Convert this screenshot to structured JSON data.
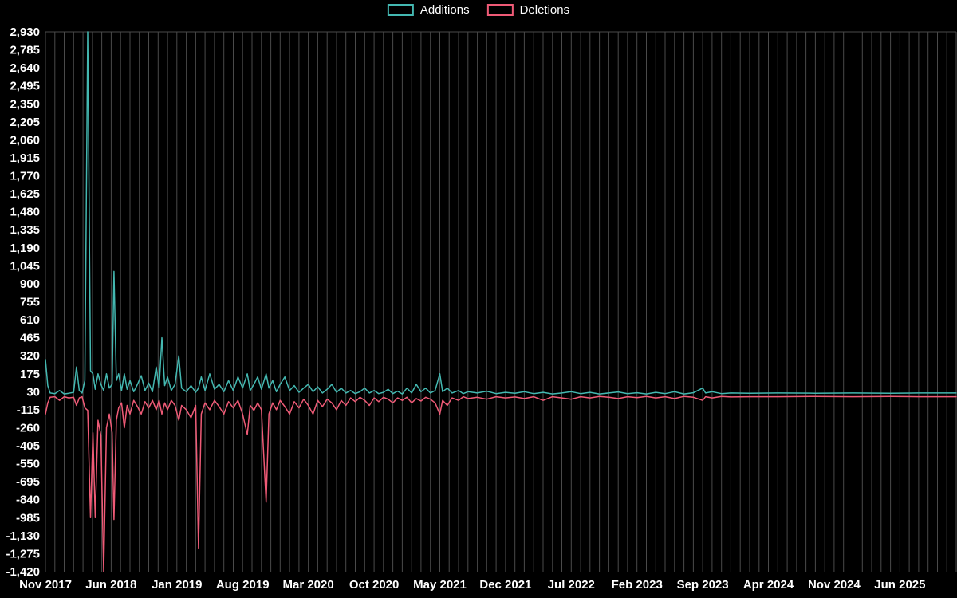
{
  "legend": {
    "additions": "Additions",
    "deletions": "Deletions"
  },
  "chart_data": {
    "type": "line",
    "title": "",
    "xlabel": "",
    "ylabel": "",
    "legend_position": "top-center",
    "x_unit": "months since Nov 2017",
    "xlim": [
      0,
      97
    ],
    "ylim": [
      -1420,
      2930
    ],
    "grid": {
      "x_interval": 1,
      "color": "#4a4a4a",
      "top_border": true
    },
    "colors": {
      "background": "#000000",
      "text": "#ffffff"
    },
    "xticks": [
      {
        "m": 0,
        "label": "Nov 2017"
      },
      {
        "m": 7,
        "label": "Jun 2018"
      },
      {
        "m": 14,
        "label": "Jan 2019"
      },
      {
        "m": 21,
        "label": "Aug 2019"
      },
      {
        "m": 28,
        "label": "Mar 2020"
      },
      {
        "m": 35,
        "label": "Oct 2020"
      },
      {
        "m": 42,
        "label": "May 2021"
      },
      {
        "m": 49,
        "label": "Dec 2021"
      },
      {
        "m": 56,
        "label": "Jul 2022"
      },
      {
        "m": 63,
        "label": "Feb 2023"
      },
      {
        "m": 70,
        "label": "Sep 2023"
      },
      {
        "m": 77,
        "label": "Apr 2024"
      },
      {
        "m": 84,
        "label": "Nov 2024"
      },
      {
        "m": 91,
        "label": "Jun 2025"
      }
    ],
    "yticks": [
      {
        "v": 2930,
        "label": "2,930"
      },
      {
        "v": 2785,
        "label": "2,785"
      },
      {
        "v": 2640,
        "label": "2,640"
      },
      {
        "v": 2495,
        "label": "2,495"
      },
      {
        "v": 2350,
        "label": "2,350"
      },
      {
        "v": 2205,
        "label": "2,205"
      },
      {
        "v": 2060,
        "label": "2,060"
      },
      {
        "v": 1915,
        "label": "1,915"
      },
      {
        "v": 1770,
        "label": "1,770"
      },
      {
        "v": 1625,
        "label": "1,625"
      },
      {
        "v": 1480,
        "label": "1,480"
      },
      {
        "v": 1335,
        "label": "1,335"
      },
      {
        "v": 1190,
        "label": "1,190"
      },
      {
        "v": 1045,
        "label": "1,045"
      },
      {
        "v": 900,
        "label": "900"
      },
      {
        "v": 755,
        "label": "755"
      },
      {
        "v": 610,
        "label": "610"
      },
      {
        "v": 465,
        "label": "465"
      },
      {
        "v": 320,
        "label": "320"
      },
      {
        "v": 175,
        "label": "175"
      },
      {
        "v": 30,
        "label": "30"
      },
      {
        "v": -115,
        "label": "-115"
      },
      {
        "v": -260,
        "label": "-260"
      },
      {
        "v": -405,
        "label": "-405"
      },
      {
        "v": -550,
        "label": "-550"
      },
      {
        "v": -695,
        "label": "-695"
      },
      {
        "v": -840,
        "label": "-840"
      },
      {
        "v": -985,
        "label": "-985"
      },
      {
        "v": -1130,
        "label": "-1,130"
      },
      {
        "v": -1275,
        "label": "-1,275"
      },
      {
        "v": -1420,
        "label": "-1,420"
      }
    ],
    "series": [
      {
        "name": "Additions",
        "color": "#44b8b1"
      },
      {
        "name": "Deletions",
        "color": "#ef5b77"
      }
    ],
    "points": [
      [
        0,
        290,
        -150
      ],
      [
        0.25,
        80,
        -60
      ],
      [
        0.5,
        20,
        -15
      ],
      [
        1,
        15,
        -10
      ],
      [
        1.5,
        40,
        -40
      ],
      [
        2,
        12,
        -10
      ],
      [
        2.5,
        18,
        -20
      ],
      [
        3,
        25,
        -15
      ],
      [
        3.3,
        230,
        -80
      ],
      [
        3.6,
        40,
        -20
      ],
      [
        3.9,
        20,
        -10
      ],
      [
        4.2,
        120,
        -100
      ],
      [
        4.5,
        2930,
        -120
      ],
      [
        4.8,
        200,
        -985
      ],
      [
        5.05,
        175,
        -300
      ],
      [
        5.3,
        50,
        -985
      ],
      [
        5.6,
        175,
        -200
      ],
      [
        5.9,
        90,
        -320
      ],
      [
        6.2,
        40,
        -1420
      ],
      [
        6.5,
        175,
        -260
      ],
      [
        6.8,
        60,
        -150
      ],
      [
        7.1,
        90,
        -300
      ],
      [
        7.3,
        1000,
        -1000
      ],
      [
        7.55,
        120,
        -200
      ],
      [
        7.8,
        175,
        -100
      ],
      [
        8.1,
        40,
        -60
      ],
      [
        8.4,
        175,
        -260
      ],
      [
        8.7,
        50,
        -80
      ],
      [
        9,
        120,
        -150
      ],
      [
        9.4,
        30,
        -40
      ],
      [
        9.8,
        90,
        -90
      ],
      [
        10.2,
        160,
        -150
      ],
      [
        10.6,
        40,
        -50
      ],
      [
        11,
        100,
        -100
      ],
      [
        11.4,
        30,
        -40
      ],
      [
        11.8,
        230,
        -115
      ],
      [
        12.1,
        60,
        -40
      ],
      [
        12.4,
        465,
        -150
      ],
      [
        12.7,
        80,
        -60
      ],
      [
        13,
        150,
        -115
      ],
      [
        13.4,
        40,
        -40
      ],
      [
        13.8,
        90,
        -80
      ],
      [
        14.2,
        320,
        -200
      ],
      [
        14.5,
        60,
        -80
      ],
      [
        15,
        30,
        -115
      ],
      [
        15.5,
        80,
        -180
      ],
      [
        16,
        25,
        -80
      ],
      [
        16.3,
        60,
        -1230
      ],
      [
        16.6,
        150,
        -150
      ],
      [
        17,
        40,
        -60
      ],
      [
        17.5,
        175,
        -115
      ],
      [
        18,
        50,
        -40
      ],
      [
        18.5,
        90,
        -90
      ],
      [
        19,
        30,
        -150
      ],
      [
        19.5,
        120,
        -50
      ],
      [
        20,
        40,
        -100
      ],
      [
        20.5,
        150,
        -40
      ],
      [
        21,
        60,
        -150
      ],
      [
        21.5,
        175,
        -315
      ],
      [
        21.8,
        40,
        -80
      ],
      [
        22.2,
        90,
        -120
      ],
      [
        22.6,
        150,
        -60
      ],
      [
        23,
        50,
        -115
      ],
      [
        23.5,
        175,
        -860
      ],
      [
        23.8,
        60,
        -150
      ],
      [
        24.2,
        120,
        -60
      ],
      [
        24.6,
        30,
        -115
      ],
      [
        25,
        90,
        -40
      ],
      [
        25.5,
        150,
        -90
      ],
      [
        26,
        40,
        -150
      ],
      [
        26.5,
        80,
        -50
      ],
      [
        27,
        25,
        -100
      ],
      [
        27.5,
        60,
        -30
      ],
      [
        28,
        90,
        -80
      ],
      [
        28.5,
        30,
        -150
      ],
      [
        29,
        70,
        -40
      ],
      [
        29.5,
        20,
        -90
      ],
      [
        30,
        50,
        -30
      ],
      [
        30.5,
        90,
        -60
      ],
      [
        31,
        25,
        -115
      ],
      [
        31.5,
        60,
        -40
      ],
      [
        32,
        20,
        -80
      ],
      [
        32.5,
        40,
        -20
      ],
      [
        33,
        15,
        -50
      ],
      [
        33.5,
        30,
        -15
      ],
      [
        34,
        60,
        -40
      ],
      [
        34.5,
        20,
        -80
      ],
      [
        35,
        40,
        -20
      ],
      [
        35.5,
        15,
        -50
      ],
      [
        36,
        25,
        -15
      ],
      [
        36.5,
        50,
        -30
      ],
      [
        37,
        15,
        -60
      ],
      [
        37.5,
        35,
        -20
      ],
      [
        38,
        12,
        -40
      ],
      [
        38.5,
        60,
        -15
      ],
      [
        39,
        20,
        -60
      ],
      [
        39.5,
        90,
        -25
      ],
      [
        40,
        30,
        -45
      ],
      [
        40.5,
        60,
        -15
      ],
      [
        41,
        20,
        -30
      ],
      [
        41.5,
        40,
        -60
      ],
      [
        42,
        175,
        -150
      ],
      [
        42.3,
        30,
        -40
      ],
      [
        42.8,
        60,
        -80
      ],
      [
        43.3,
        20,
        -20
      ],
      [
        44,
        40,
        -40
      ],
      [
        44.5,
        15,
        -10
      ],
      [
        45,
        30,
        -25
      ],
      [
        46,
        20,
        -15
      ],
      [
        47,
        35,
        -30
      ],
      [
        48,
        15,
        -10
      ],
      [
        49,
        25,
        -20
      ],
      [
        50,
        18,
        -12
      ],
      [
        51,
        30,
        -25
      ],
      [
        52,
        15,
        -10
      ],
      [
        53,
        25,
        -40
      ],
      [
        54,
        12,
        -10
      ],
      [
        55,
        20,
        -20
      ],
      [
        56,
        30,
        -30
      ],
      [
        57,
        15,
        -10
      ],
      [
        58,
        25,
        -20
      ],
      [
        59,
        12,
        -8
      ],
      [
        60,
        20,
        -15
      ],
      [
        61,
        28,
        -25
      ],
      [
        62,
        15,
        -10
      ],
      [
        63,
        22,
        -18
      ],
      [
        64,
        12,
        -8
      ],
      [
        65,
        25,
        -20
      ],
      [
        66,
        15,
        -10
      ],
      [
        67,
        30,
        -25
      ],
      [
        68,
        12,
        -8
      ],
      [
        69,
        22,
        -15
      ],
      [
        70,
        60,
        -40
      ],
      [
        70.3,
        20,
        -10
      ],
      [
        71,
        30,
        -20
      ],
      [
        72,
        15,
        -8
      ],
      [
        73,
        20,
        -12
      ],
      [
        75,
        18,
        -10
      ],
      [
        78,
        20,
        -10
      ],
      [
        82,
        18,
        -8
      ],
      [
        86,
        20,
        -10
      ],
      [
        90,
        18,
        -8
      ],
      [
        93,
        20,
        -10
      ],
      [
        97,
        20,
        -10
      ]
    ]
  }
}
